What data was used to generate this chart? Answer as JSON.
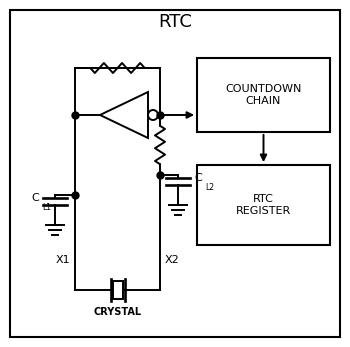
{
  "title": "RTC",
  "bg_color": "#ffffff",
  "border_color": "#000000",
  "line_color": "#000000",
  "box_color": "#ffffff",
  "countdown_chain_label": "COUNTDOWN\nCHAIN",
  "rtc_register_label": "RTC\nREGISTER",
  "crystal_label": "CRYSTAL",
  "x1_label": "X1",
  "x2_label": "X2",
  "cl1_label": "C",
  "cl1_sub": "L1",
  "cl2_label": "C",
  "cl2_sub": "L2",
  "lw": 1.4
}
